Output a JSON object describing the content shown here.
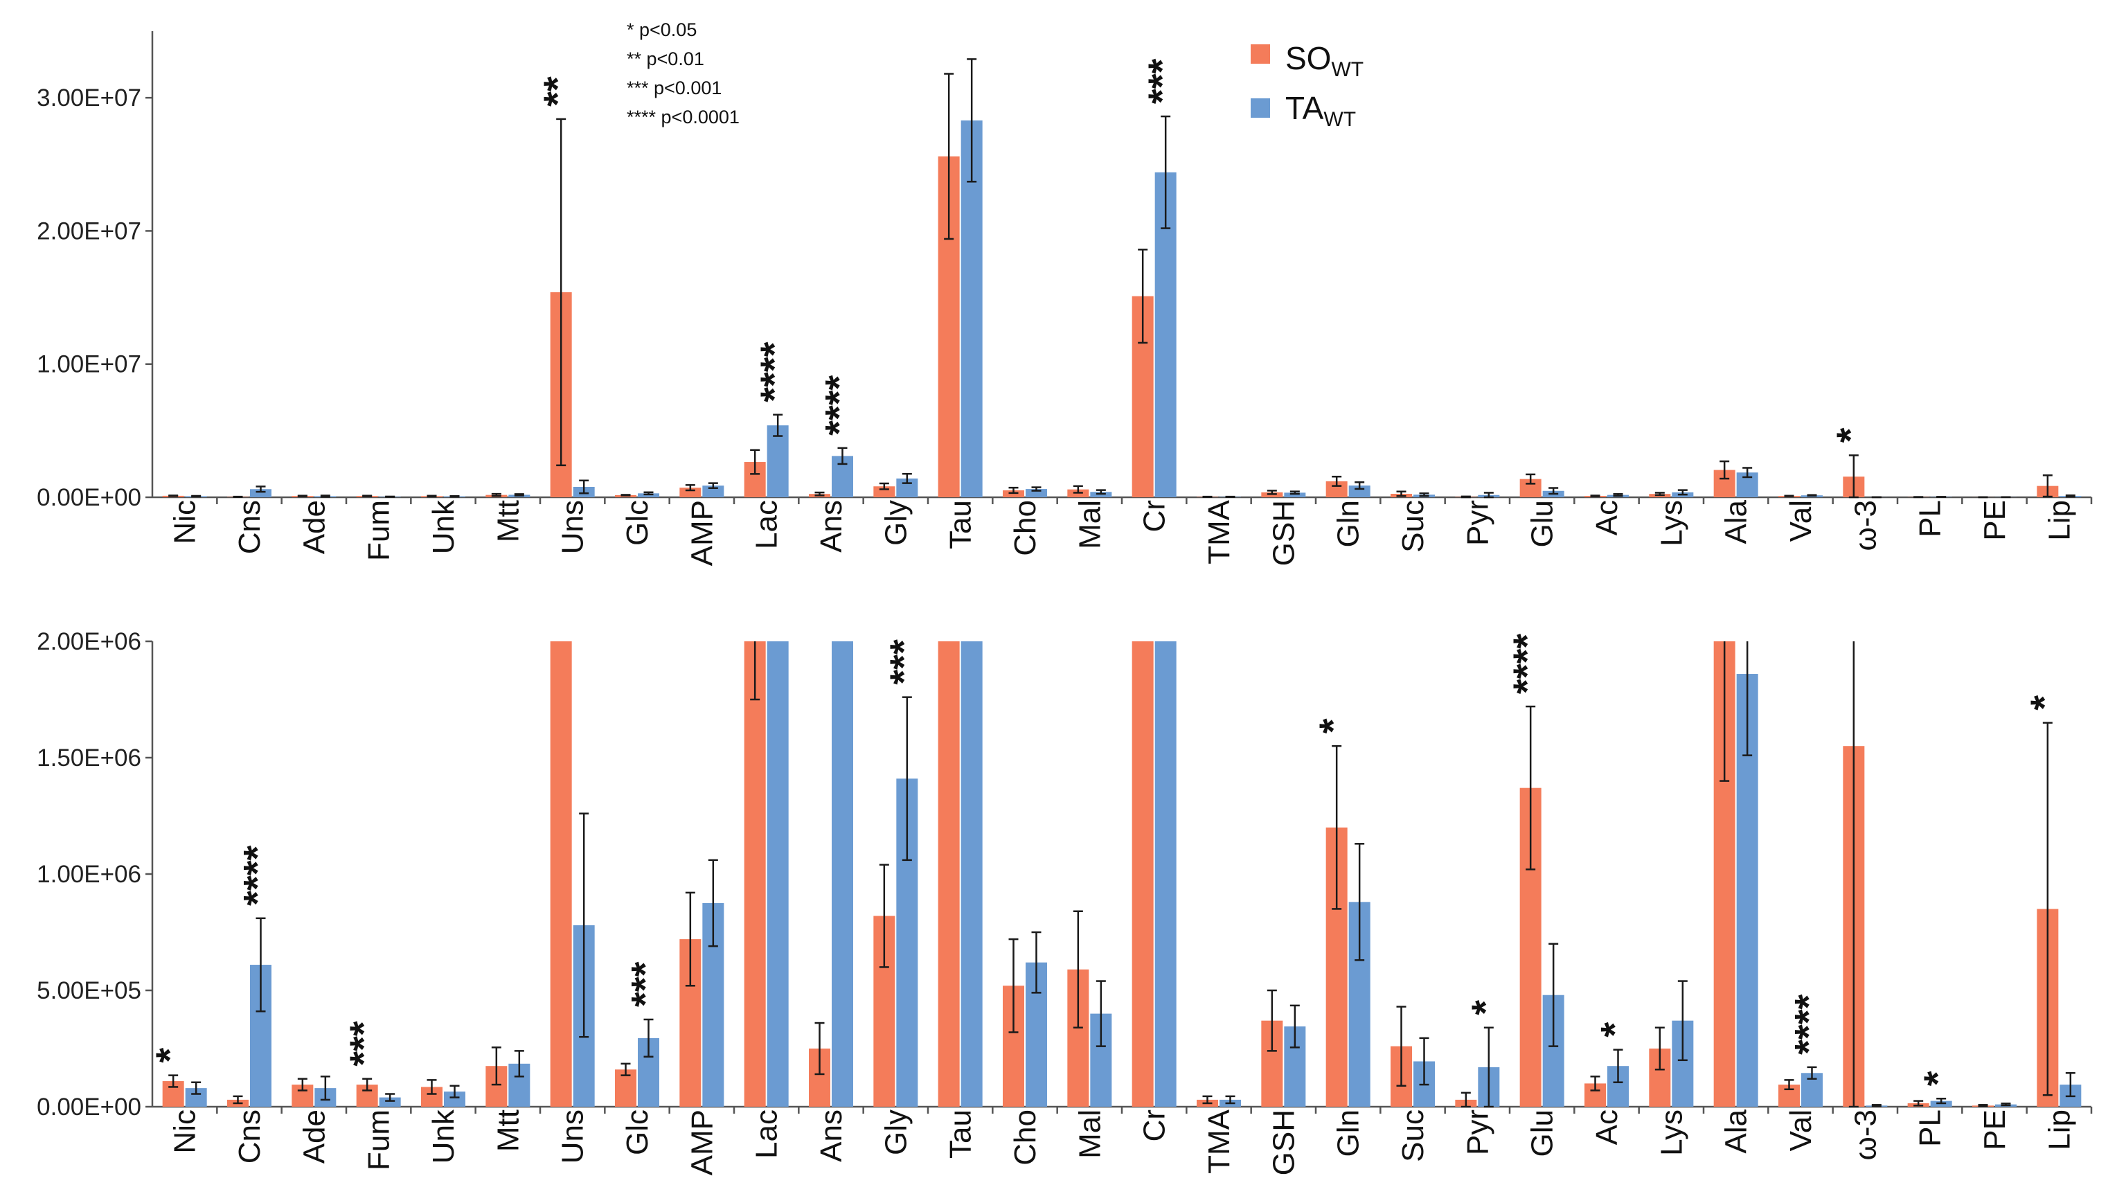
{
  "chart_data": [
    {
      "type": "bar",
      "panel": "top",
      "categories": [
        "Nic",
        "Cns",
        "Ade",
        "Fum",
        "Unk",
        "Mtt",
        "Uns",
        "Glc",
        "AMP",
        "Lac",
        "Ans",
        "Gly",
        "Tau",
        "Cho",
        "Mal",
        "Cr",
        "TMA",
        "GSH",
        "Gln",
        "Suc",
        "Pyr",
        "Glu",
        "Ac",
        "Lys",
        "Ala",
        "Val",
        "ω-3",
        "PL",
        "PE",
        "Lip"
      ],
      "ylim": [
        0,
        35000000
      ],
      "yticks": [
        0,
        10000000,
        20000000,
        30000000
      ],
      "ytick_labels": [
        "0.00E+00",
        "1.00E+07",
        "2.00E+07",
        "3.00E+07"
      ],
      "series": [
        {
          "name": "SO_WT",
          "color": "#f47c5a",
          "values": [
            110000,
            30000,
            95000,
            95000,
            85000,
            175000,
            15400000,
            160000,
            720000,
            2650000,
            250000,
            820000,
            25600000,
            520000,
            590000,
            15100000,
            30000,
            370000,
            1200000,
            260000,
            30000,
            1370000,
            100000,
            250000,
            2050000,
            95000,
            1550000,
            15000,
            5000,
            850000
          ],
          "errors": [
            25000,
            15000,
            25000,
            25000,
            30000,
            80000,
            13000000,
            25000,
            200000,
            900000,
            110000,
            220000,
            6200000,
            200000,
            250000,
            3500000,
            15000,
            130000,
            350000,
            170000,
            30000,
            350000,
            30000,
            90000,
            650000,
            20000,
            1600000,
            10000,
            3000,
            800000
          ]
        },
        {
          "name": "TA_WT",
          "color": "#6b9bd2",
          "values": [
            80000,
            610000,
            80000,
            40000,
            65000,
            185000,
            780000,
            295000,
            875000,
            5400000,
            3100000,
            1410000,
            28300000,
            620000,
            400000,
            24400000,
            30000,
            345000,
            880000,
            195000,
            170000,
            480000,
            175000,
            370000,
            1860000,
            145000,
            5000,
            25000,
            10000,
            95000
          ]
        },
        {
          "name": "TA_WT_errors",
          "color": "#000000",
          "values": [
            25000,
            200000,
            50000,
            15000,
            25000,
            55000,
            480000,
            80000,
            185000,
            800000,
            600000,
            350000,
            4600000,
            130000,
            140000,
            4200000,
            15000,
            90000,
            250000,
            100000,
            170000,
            220000,
            70000,
            170000,
            350000,
            25000,
            3000,
            10000,
            4000,
            50000
          ]
        }
      ],
      "significance": [
        {
          "category": "Uns",
          "stars": "**"
        },
        {
          "category": "Lac",
          "stars": "****"
        },
        {
          "category": "Ans",
          "stars": "****"
        },
        {
          "category": "Cr",
          "stars": "***"
        },
        {
          "category": "ω-3",
          "stars": "*"
        }
      ]
    },
    {
      "type": "bar",
      "panel": "bottom",
      "categories": [
        "Nic",
        "Cns",
        "Ade",
        "Fum",
        "Unk",
        "Mtt",
        "Uns",
        "Glc",
        "AMP",
        "Lac",
        "Ans",
        "Gly",
        "Tau",
        "Cho",
        "Mal",
        "Cr",
        "TMA",
        "GSH",
        "Gln",
        "Suc",
        "Pyr",
        "Glu",
        "Ac",
        "Lys",
        "Ala",
        "Val",
        "ω-3",
        "PL",
        "PE",
        "Lip"
      ],
      "ylim": [
        0,
        2000000
      ],
      "yticks": [
        0,
        500000,
        1000000,
        1500000,
        2000000
      ],
      "ytick_labels": [
        "0.00E+00",
        "5.00E+05",
        "1.00E+06",
        "1.50E+06",
        "2.00E+06"
      ],
      "note": "values above 2.00E+06 are clipped at the top of the axis",
      "significance": [
        {
          "category": "Nic",
          "stars": "*"
        },
        {
          "category": "Cns",
          "stars": "****"
        },
        {
          "category": "Fum",
          "stars": "***"
        },
        {
          "category": "Glc",
          "stars": "***"
        },
        {
          "category": "Gly",
          "stars": "***"
        },
        {
          "category": "Gln",
          "stars": "*"
        },
        {
          "category": "Pyr",
          "stars": "*"
        },
        {
          "category": "Glu",
          "stars": "****"
        },
        {
          "category": "Ac",
          "stars": "*"
        },
        {
          "category": "Val",
          "stars": "****"
        },
        {
          "category": "PL",
          "stars": "*"
        },
        {
          "category": "Lip",
          "stars": "*"
        }
      ]
    }
  ],
  "legend": {
    "p_values": [
      "* p<0.05",
      "** p<0.01",
      "*** p<0.001",
      "**** p<0.0001"
    ],
    "entries": [
      {
        "main": "SO",
        "sub": "WT",
        "color": "#f47c5a"
      },
      {
        "main": "TA",
        "sub": "WT",
        "color": "#6b9bd2"
      }
    ]
  }
}
